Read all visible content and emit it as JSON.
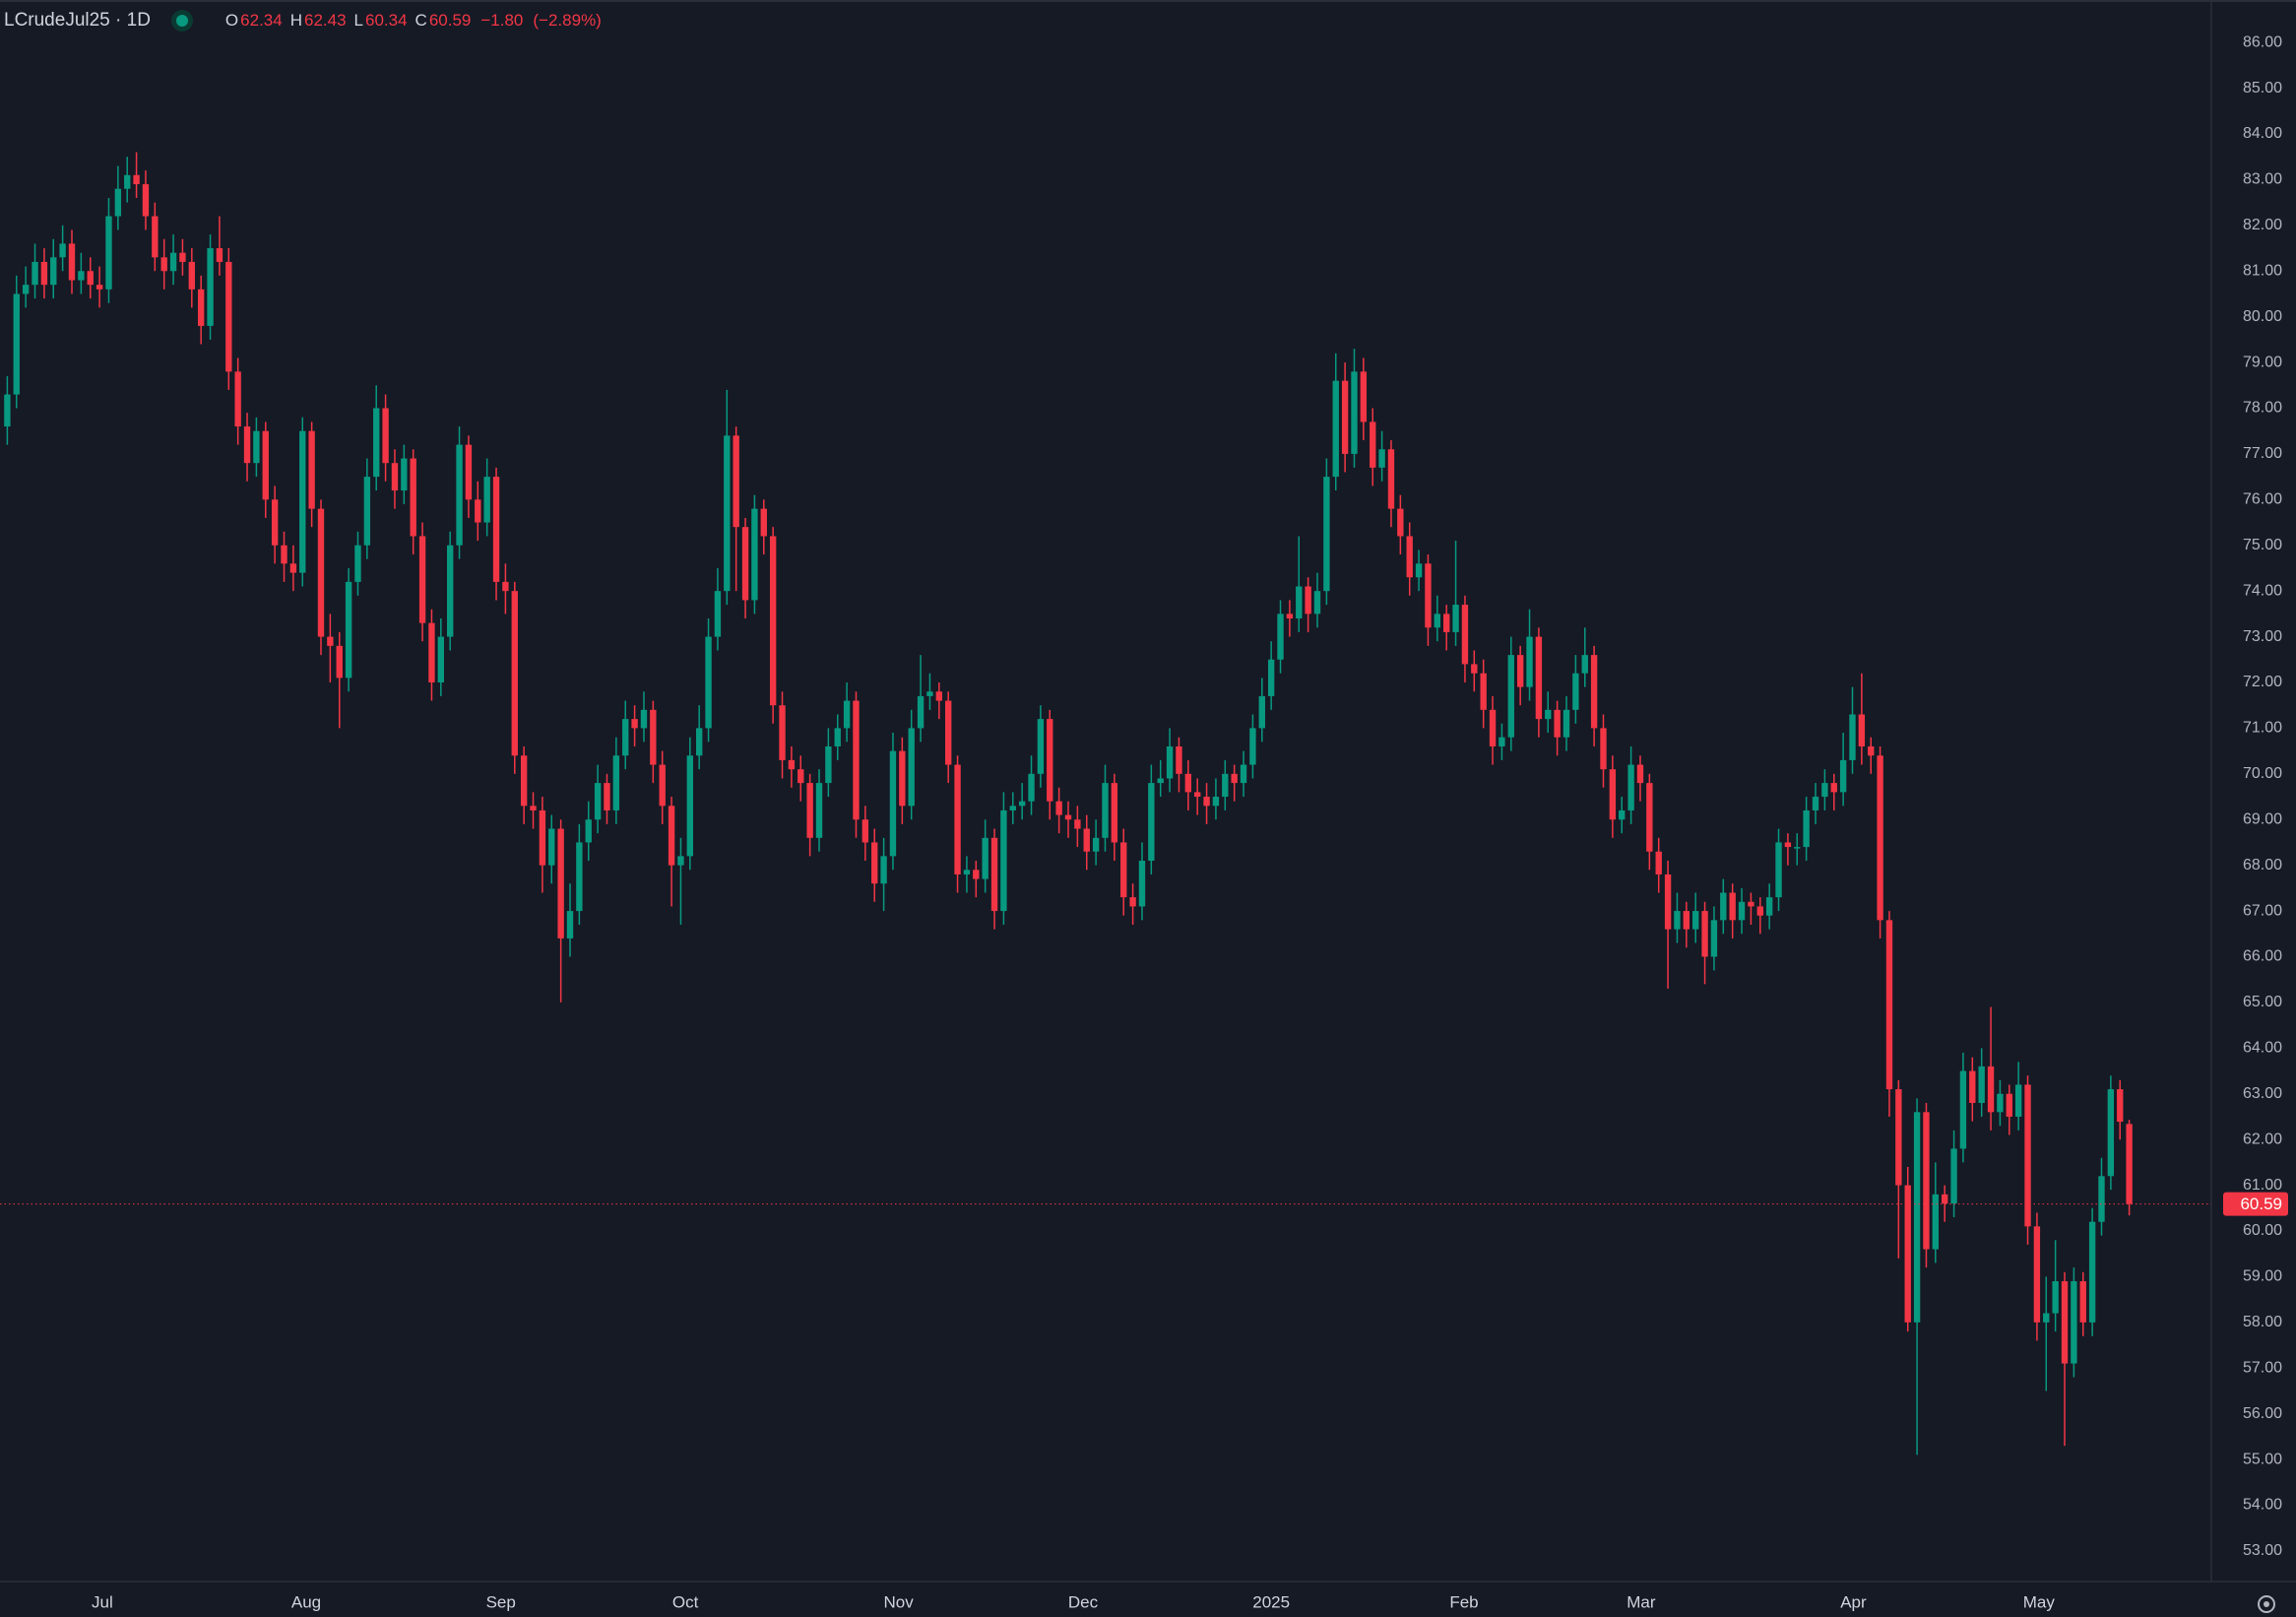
{
  "header": {
    "symbol": "LCrudeJul25 · 1D",
    "fields": [
      {
        "label": "O",
        "value": 62.34
      },
      {
        "label": "H",
        "value": 62.43
      },
      {
        "label": "L",
        "value": 60.34
      },
      {
        "label": "C",
        "value": 60.59
      }
    ],
    "change": "−1.80",
    "change_percent": "(−2.89%)"
  },
  "chart_data": {
    "type": "candlestick",
    "title": "LCrudeJul25 · 1D",
    "up_color": "#089981",
    "down_color": "#f23645",
    "grid": false,
    "last_price": 60.59,
    "xlim": [
      -0.79,
      238.9
    ],
    "ylim": [
      52.33,
      86.93
    ],
    "xticks": [
      {
        "value": 10.3,
        "label": "Jul"
      },
      {
        "value": 32.4,
        "label": "Aug"
      },
      {
        "value": 53.5,
        "label": "Sep"
      },
      {
        "value": 73.5,
        "label": "Oct"
      },
      {
        "value": 96.6,
        "label": "Nov"
      },
      {
        "value": 116.6,
        "label": "Dec"
      },
      {
        "value": 137.0,
        "label": "2025"
      },
      {
        "value": 157.9,
        "label": "Feb"
      },
      {
        "value": 177.1,
        "label": "Mar"
      },
      {
        "value": 200.1,
        "label": "Apr"
      },
      {
        "value": 220.2,
        "label": "May"
      }
    ],
    "yticks": [
      {
        "value": 86,
        "label": "86.00"
      },
      {
        "value": 85,
        "label": "85.00"
      },
      {
        "value": 84,
        "label": "84.00"
      },
      {
        "value": 83,
        "label": "83.00"
      },
      {
        "value": 82,
        "label": "82.00"
      },
      {
        "value": 81,
        "label": "81.00"
      },
      {
        "value": 80,
        "label": "80.00"
      },
      {
        "value": 79,
        "label": "79.00"
      },
      {
        "value": 78,
        "label": "78.00"
      },
      {
        "value": 77,
        "label": "77.00"
      },
      {
        "value": 76,
        "label": "76.00"
      },
      {
        "value": 75,
        "label": "75.00"
      },
      {
        "value": 74,
        "label": "74.00"
      },
      {
        "value": 73,
        "label": "73.00"
      },
      {
        "value": 72,
        "label": "72.00"
      },
      {
        "value": 71,
        "label": "71.00"
      },
      {
        "value": 70,
        "label": "70.00"
      },
      {
        "value": 69,
        "label": "69.00"
      },
      {
        "value": 68,
        "label": "68.00"
      },
      {
        "value": 67,
        "label": "67.00"
      },
      {
        "value": 66,
        "label": "66.00"
      },
      {
        "value": 65,
        "label": "65.00"
      },
      {
        "value": 64,
        "label": "64.00"
      },
      {
        "value": 63,
        "label": "63.00"
      },
      {
        "value": 62,
        "label": "62.00"
      },
      {
        "value": 61,
        "label": "61.00"
      },
      {
        "value": 60,
        "label": "60.00"
      },
      {
        "value": 59,
        "label": "59.00"
      },
      {
        "value": 58,
        "label": "58.00"
      },
      {
        "value": 57,
        "label": "57.00"
      },
      {
        "value": 56,
        "label": "56.00"
      },
      {
        "value": 55,
        "label": "55.00"
      },
      {
        "value": 54,
        "label": "54.00"
      },
      {
        "value": 53,
        "label": "53.00"
      }
    ],
    "open": [
      77.6,
      78.3,
      80.5,
      80.7,
      81.2,
      80.7,
      81.3,
      81.6,
      80.8,
      81.0,
      80.7,
      80.6,
      82.2,
      82.8,
      83.1,
      82.9,
      82.2,
      81.3,
      81.0,
      81.4,
      81.2,
      80.6,
      79.8,
      81.5,
      81.2,
      78.8,
      77.6,
      76.8,
      77.5,
      76.0,
      75.0,
      74.6,
      74.4,
      77.5,
      75.8,
      73.0,
      72.8,
      72.1,
      74.2,
      75.0,
      76.5,
      78.0,
      76.8,
      76.2,
      76.9,
      75.2,
      73.3,
      72.0,
      73.0,
      75.0,
      77.2,
      76.0,
      75.5,
      76.5,
      74.2,
      74.0,
      70.4,
      69.3,
      69.2,
      68.0,
      68.8,
      66.4,
      67.0,
      68.5,
      69.0,
      69.8,
      69.2,
      70.4,
      71.2,
      71.0,
      71.4,
      70.2,
      69.3,
      68.0,
      68.2,
      70.4,
      71.0,
      73.0,
      74.0,
      77.4,
      75.4,
      73.8,
      75.8,
      75.2,
      71.5,
      70.3,
      70.1,
      69.8,
      68.6,
      69.8,
      70.6,
      71.0,
      71.6,
      69.0,
      68.5,
      67.6,
      68.2,
      70.5,
      69.3,
      71.0,
      71.7,
      71.8,
      71.6,
      70.2,
      67.8,
      67.9,
      67.7,
      68.6,
      67.0,
      69.2,
      69.3,
      69.4,
      70.0,
      71.2,
      69.4,
      69.1,
      69.0,
      68.8,
      68.3,
      68.6,
      69.8,
      68.5,
      67.3,
      67.1,
      68.1,
      69.8,
      69.9,
      70.6,
      70.0,
      69.6,
      69.5,
      69.3,
      69.5,
      70.0,
      69.8,
      70.2,
      71.0,
      71.7,
      72.5,
      73.5,
      73.4,
      74.1,
      73.5,
      74.0,
      76.5,
      78.6,
      77.0,
      78.8,
      77.7,
      76.7,
      77.1,
      75.8,
      75.2,
      74.3,
      74.6,
      73.2,
      73.5,
      73.1,
      73.7,
      72.4,
      72.2,
      71.4,
      70.6,
      70.8,
      72.6,
      71.9,
      73.0,
      71.2,
      71.4,
      70.8,
      71.4,
      72.2,
      72.6,
      71.0,
      70.1,
      69.0,
      69.2,
      70.2,
      69.8,
      68.3,
      67.8,
      66.6,
      67.0,
      66.6,
      67.0,
      66.0,
      66.8,
      67.4,
      66.8,
      67.2,
      67.1,
      66.9,
      67.3,
      68.5,
      68.4,
      68.4,
      69.2,
      69.5,
      69.8,
      69.6,
      70.3,
      71.3,
      70.6,
      70.4,
      66.8,
      63.1,
      61.0,
      58.0,
      62.6,
      59.6,
      60.8,
      60.6,
      61.8,
      63.5,
      62.8,
      63.6,
      62.6,
      63.0,
      62.5,
      63.2,
      60.1,
      58.0,
      58.2,
      58.9,
      57.1,
      58.9,
      58.0,
      60.2,
      61.2,
      63.1,
      62.34
    ],
    "high": [
      78.7,
      80.9,
      81.1,
      81.6,
      81.5,
      81.7,
      82.0,
      81.9,
      81.4,
      81.3,
      81.1,
      82.6,
      83.3,
      83.5,
      83.6,
      83.2,
      82.5,
      81.7,
      81.8,
      81.7,
      81.5,
      80.9,
      81.8,
      82.2,
      81.5,
      79.1,
      77.9,
      77.8,
      77.7,
      76.3,
      75.3,
      75.0,
      77.8,
      77.7,
      76.0,
      73.5,
      73.1,
      74.5,
      75.3,
      76.9,
      78.5,
      78.3,
      77.1,
      77.2,
      77.1,
      75.5,
      73.6,
      73.4,
      75.3,
      77.6,
      77.4,
      76.4,
      76.9,
      76.7,
      74.6,
      74.2,
      70.6,
      69.6,
      69.5,
      69.1,
      69.0,
      67.6,
      68.9,
      69.4,
      70.2,
      70.0,
      70.8,
      71.6,
      71.5,
      71.8,
      71.6,
      70.5,
      69.5,
      68.6,
      70.8,
      71.5,
      73.4,
      74.5,
      78.4,
      77.6,
      75.6,
      76.1,
      76.0,
      75.4,
      71.8,
      70.6,
      70.4,
      70.0,
      70.1,
      71.0,
      71.3,
      72.0,
      71.8,
      69.3,
      68.8,
      68.6,
      70.9,
      70.8,
      71.4,
      72.6,
      72.2,
      72.0,
      71.8,
      70.4,
      68.2,
      68.1,
      69.0,
      68.8,
      69.6,
      69.6,
      69.8,
      70.4,
      71.5,
      71.4,
      69.7,
      69.4,
      69.3,
      69.1,
      69.0,
      70.2,
      70.0,
      68.8,
      67.6,
      68.5,
      70.2,
      70.3,
      71.0,
      70.8,
      70.3,
      69.9,
      69.8,
      69.9,
      70.3,
      70.2,
      70.5,
      71.3,
      72.1,
      72.9,
      73.8,
      73.8,
      75.2,
      74.3,
      74.4,
      76.9,
      79.2,
      79.0,
      79.3,
      79.1,
      78.0,
      77.5,
      77.3,
      76.1,
      75.5,
      74.9,
      74.8,
      73.9,
      73.7,
      75.1,
      73.9,
      72.7,
      72.5,
      71.7,
      71.1,
      73.0,
      72.8,
      73.6,
      73.2,
      71.8,
      71.6,
      71.7,
      72.6,
      73.2,
      72.8,
      71.3,
      70.4,
      69.5,
      70.6,
      70.4,
      70.0,
      68.6,
      68.1,
      67.4,
      67.2,
      67.4,
      67.2,
      67.1,
      67.7,
      67.6,
      67.5,
      67.4,
      67.3,
      67.6,
      68.8,
      68.7,
      68.7,
      69.5,
      69.8,
      70.1,
      70.0,
      70.9,
      71.9,
      72.2,
      70.8,
      70.6,
      67.0,
      63.3,
      61.4,
      62.9,
      62.8,
      61.5,
      61.0,
      62.2,
      63.9,
      63.8,
      64.0,
      64.9,
      63.3,
      63.2,
      63.7,
      63.4,
      60.4,
      59.0,
      59.8,
      59.1,
      59.2,
      59.1,
      60.5,
      61.6,
      63.4,
      63.3,
      62.43
    ],
    "low": [
      77.2,
      78.0,
      80.2,
      80.4,
      80.4,
      80.4,
      81.0,
      80.5,
      80.5,
      80.4,
      80.2,
      80.3,
      81.9,
      82.5,
      82.6,
      81.9,
      81.0,
      80.6,
      80.7,
      80.9,
      80.2,
      79.4,
      79.5,
      80.9,
      78.4,
      77.2,
      76.4,
      76.5,
      75.6,
      74.6,
      74.2,
      74.0,
      74.1,
      75.4,
      72.6,
      72.0,
      71.0,
      71.8,
      73.9,
      74.7,
      76.2,
      76.4,
      75.8,
      75.9,
      74.8,
      72.9,
      71.6,
      71.7,
      72.7,
      74.7,
      75.6,
      75.1,
      75.2,
      73.8,
      73.5,
      70.0,
      68.9,
      68.8,
      67.4,
      67.6,
      65.0,
      66.0,
      66.7,
      68.1,
      68.7,
      68.9,
      68.9,
      70.1,
      70.6,
      70.7,
      69.8,
      68.9,
      67.1,
      66.7,
      67.9,
      70.1,
      70.7,
      72.7,
      73.7,
      74.0,
      73.4,
      73.5,
      74.8,
      71.1,
      69.9,
      69.7,
      69.4,
      68.2,
      68.3,
      69.5,
      70.3,
      70.7,
      68.6,
      68.1,
      67.2,
      67.0,
      67.9,
      68.9,
      69.0,
      70.7,
      71.4,
      71.2,
      69.8,
      67.4,
      67.4,
      67.3,
      67.4,
      66.6,
      66.7,
      68.9,
      69.0,
      69.1,
      69.7,
      69.0,
      68.7,
      68.6,
      68.4,
      67.9,
      68.0,
      68.3,
      68.1,
      66.9,
      66.7,
      66.8,
      67.8,
      69.5,
      69.6,
      69.6,
      69.2,
      69.1,
      68.9,
      69.0,
      69.2,
      69.4,
      69.5,
      69.9,
      70.7,
      71.4,
      72.2,
      73.0,
      73.1,
      73.1,
      73.2,
      73.7,
      76.2,
      76.6,
      76.7,
      77.3,
      76.3,
      76.4,
      75.4,
      74.8,
      73.9,
      74.0,
      72.8,
      72.9,
      72.7,
      72.8,
      72.0,
      71.8,
      71.0,
      70.2,
      70.3,
      70.5,
      71.5,
      71.6,
      70.8,
      70.9,
      70.4,
      70.5,
      71.1,
      71.9,
      70.6,
      69.7,
      68.6,
      68.7,
      68.9,
      69.4,
      67.9,
      67.4,
      65.3,
      66.3,
      66.2,
      66.3,
      65.4,
      65.7,
      66.5,
      66.4,
      66.5,
      66.7,
      66.5,
      66.6,
      67.0,
      68.0,
      68.0,
      68.1,
      68.9,
      69.2,
      69.2,
      69.3,
      70.0,
      70.2,
      70.0,
      66.4,
      62.5,
      59.4,
      57.8,
      55.1,
      59.2,
      59.3,
      60.2,
      60.3,
      61.5,
      62.4,
      62.5,
      62.2,
      62.3,
      62.1,
      62.2,
      59.7,
      57.6,
      56.5,
      57.8,
      55.3,
      56.8,
      57.7,
      57.7,
      59.9,
      60.9,
      62.0,
      60.34
    ],
    "close": [
      78.3,
      80.5,
      80.7,
      81.2,
      80.7,
      81.3,
      81.6,
      80.8,
      81.0,
      80.7,
      80.6,
      82.2,
      82.8,
      83.1,
      82.9,
      82.2,
      81.3,
      81.0,
      81.4,
      81.2,
      80.6,
      79.8,
      81.5,
      81.2,
      78.8,
      77.6,
      76.8,
      77.5,
      76.0,
      75.0,
      74.6,
      74.4,
      77.5,
      75.8,
      73.0,
      72.8,
      72.1,
      74.2,
      75.0,
      76.5,
      78.0,
      76.8,
      76.2,
      76.9,
      75.2,
      73.3,
      72.0,
      73.0,
      75.0,
      77.2,
      76.0,
      75.5,
      76.5,
      74.2,
      74.0,
      70.4,
      69.3,
      69.2,
      68.0,
      68.8,
      66.4,
      67.0,
      68.5,
      69.0,
      69.8,
      69.2,
      70.4,
      71.2,
      71.0,
      71.4,
      70.2,
      69.3,
      68.0,
      68.2,
      70.4,
      71.0,
      73.0,
      74.0,
      77.4,
      75.4,
      73.8,
      75.8,
      75.2,
      71.5,
      70.3,
      70.1,
      69.8,
      68.6,
      69.8,
      70.6,
      71.0,
      71.6,
      69.0,
      68.5,
      67.6,
      68.2,
      70.5,
      69.3,
      71.0,
      71.7,
      71.8,
      71.6,
      70.2,
      67.8,
      67.9,
      67.7,
      68.6,
      67.0,
      69.2,
      69.3,
      69.4,
      70.0,
      71.2,
      69.4,
      69.1,
      69.0,
      68.8,
      68.3,
      68.6,
      69.8,
      68.5,
      67.3,
      67.1,
      68.1,
      69.8,
      69.9,
      70.6,
      70.0,
      69.6,
      69.5,
      69.3,
      69.5,
      70.0,
      69.8,
      70.2,
      71.0,
      71.7,
      72.5,
      73.5,
      73.4,
      74.1,
      73.5,
      74.0,
      76.5,
      78.6,
      77.0,
      78.8,
      77.7,
      76.7,
      77.1,
      75.8,
      75.2,
      74.3,
      74.6,
      73.2,
      73.5,
      73.1,
      73.7,
      72.4,
      72.2,
      71.4,
      70.6,
      70.8,
      72.6,
      71.9,
      73.0,
      71.2,
      71.4,
      70.8,
      71.4,
      72.2,
      72.6,
      71.0,
      70.1,
      69.0,
      69.2,
      70.2,
      69.8,
      68.3,
      67.8,
      66.6,
      67.0,
      66.6,
      67.0,
      66.0,
      66.8,
      67.4,
      66.8,
      67.2,
      67.1,
      66.9,
      67.3,
      68.5,
      68.4,
      68.4,
      69.2,
      69.5,
      69.8,
      69.6,
      70.3,
      71.3,
      70.6,
      70.4,
      66.8,
      63.1,
      61.0,
      58.0,
      62.6,
      59.6,
      60.8,
      60.6,
      61.8,
      63.5,
      62.8,
      63.6,
      62.6,
      63.0,
      62.5,
      63.2,
      60.1,
      58.0,
      58.2,
      58.9,
      57.1,
      58.9,
      58.0,
      60.2,
      61.2,
      63.1,
      62.39,
      60.59
    ]
  }
}
